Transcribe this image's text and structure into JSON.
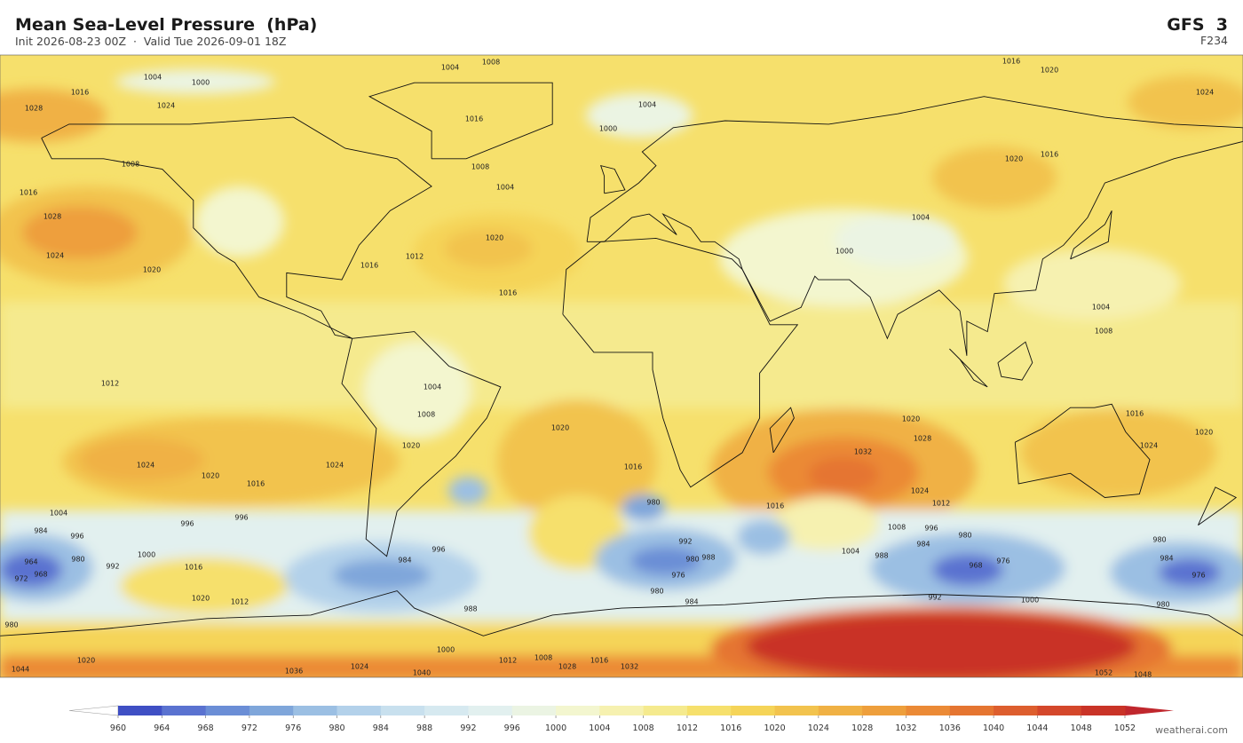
{
  "header": {
    "title": "Mean Sea-Level Pressure  (hPa)",
    "subtitle": "Init 2026-08-23 00Z  ·  Valid Tue 2026-09-01 18Z",
    "model": "GFS  3",
    "forecast_hour": "F234"
  },
  "map": {
    "contour_labels": [
      1004,
      1000,
      1004,
      1008,
      1016,
      1020,
      1024,
      1016,
      1028,
      1024,
      1016,
      1004,
      1000,
      1008,
      1004,
      1008,
      1016,
      1028,
      1024,
      1020,
      1020,
      1016,
      1012,
      1016,
      1020,
      1016,
      1004,
      1000,
      1004,
      1008,
      1012,
      1004,
      1008,
      1020,
      1020,
      1020,
      1028,
      1032,
      1016,
      1024,
      1020,
      1024,
      1024,
      1020,
      1016,
      1016,
      1016,
      1024,
      1012,
      1004,
      996,
      996,
      984,
      996,
      964,
      968,
      972,
      980,
      992,
      1000,
      1016,
      1020,
      1012,
      980,
      984,
      996,
      988,
      992,
      980,
      988,
      976,
      980,
      984,
      968,
      976,
      980,
      996,
      984,
      988,
      1004,
      1008,
      980,
      984,
      976,
      980,
      1000,
      992,
      980,
      1020,
      1036,
      1024,
      1040,
      1000,
      1012,
      1008,
      1028,
      1016,
      1032,
      1052,
      1048,
      1044
    ]
  },
  "colorbar": {
    "levels": [
      960,
      964,
      968,
      972,
      976,
      980,
      984,
      988,
      992,
      996,
      1000,
      1004,
      1008,
      1012,
      1016,
      1020,
      1024,
      1028,
      1032,
      1036,
      1040,
      1044,
      1048,
      1052
    ],
    "colors": [
      "#3f4fc4",
      "#5a72d0",
      "#6b8ed6",
      "#7fa6da",
      "#9bbfe3",
      "#b3d1ea",
      "#c8e0ee",
      "#d6e9f0",
      "#e2f0ef",
      "#ebf4e3",
      "#f3f6cf",
      "#f6f1b0",
      "#f5ea8e",
      "#f6e06c",
      "#f5d458",
      "#f2c34e",
      "#f0b144",
      "#ee9f3c",
      "#eb8a36",
      "#e57531",
      "#dd5e2e",
      "#d4472b",
      "#c93327"
    ],
    "under_color": "#ffffff",
    "over_color": "#c0272d"
  },
  "footer": "weatherai.com"
}
